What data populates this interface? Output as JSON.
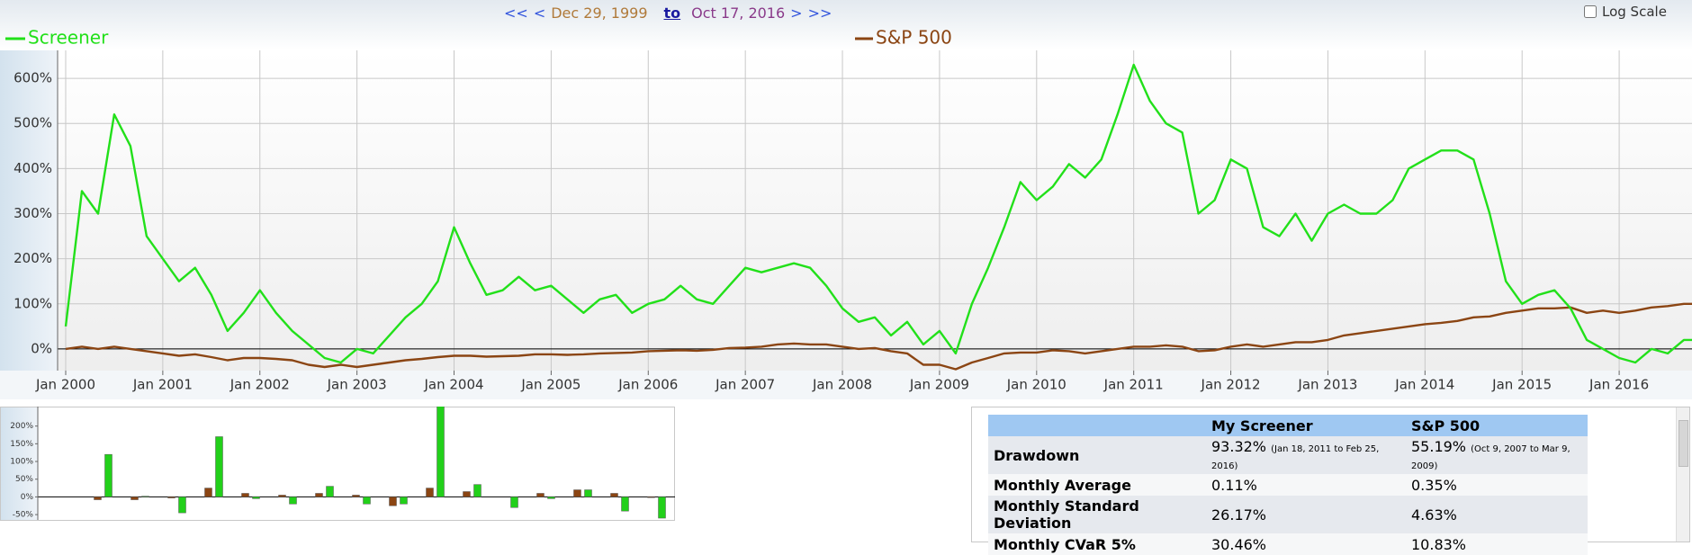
{
  "nav": {
    "first": "<<",
    "prev": "<",
    "start": "Dec 29, 1999",
    "to": "to",
    "end": "Oct 17, 2016",
    "next": ">",
    "last": ">>"
  },
  "log_scale": {
    "label": "Log Scale",
    "checked": false
  },
  "chart_data": [
    {
      "type": "line",
      "x": [
        "2000-01",
        "2000-03",
        "2000-05",
        "2000-07",
        "2000-09",
        "2000-11",
        "2001-01",
        "2001-03",
        "2001-05",
        "2001-07",
        "2001-09",
        "2001-11",
        "2002-01",
        "2002-03",
        "2002-05",
        "2002-07",
        "2002-09",
        "2002-11",
        "2003-01",
        "2003-03",
        "2003-05",
        "2003-07",
        "2003-09",
        "2003-11",
        "2004-01",
        "2004-03",
        "2004-05",
        "2004-07",
        "2004-09",
        "2004-11",
        "2005-01",
        "2005-03",
        "2005-05",
        "2005-07",
        "2005-09",
        "2005-11",
        "2006-01",
        "2006-03",
        "2006-05",
        "2006-07",
        "2006-09",
        "2006-11",
        "2007-01",
        "2007-03",
        "2007-05",
        "2007-07",
        "2007-09",
        "2007-11",
        "2008-01",
        "2008-03",
        "2008-05",
        "2008-07",
        "2008-09",
        "2008-11",
        "2009-01",
        "2009-03",
        "2009-05",
        "2009-07",
        "2009-09",
        "2009-11",
        "2010-01",
        "2010-03",
        "2010-05",
        "2010-07",
        "2010-09",
        "2010-11",
        "2011-01",
        "2011-03",
        "2011-05",
        "2011-07",
        "2011-09",
        "2011-11",
        "2012-01",
        "2012-03",
        "2012-05",
        "2012-07",
        "2012-09",
        "2012-11",
        "2013-01",
        "2013-03",
        "2013-05",
        "2013-07",
        "2013-09",
        "2013-11",
        "2014-01",
        "2014-03",
        "2014-05",
        "2014-07",
        "2014-09",
        "2014-11",
        "2015-01",
        "2015-03",
        "2015-05",
        "2015-07",
        "2015-09",
        "2015-11",
        "2016-01",
        "2016-03",
        "2016-05",
        "2016-07",
        "2016-09",
        "2016-10"
      ],
      "series": [
        {
          "name": "Screener",
          "color": "#22e01a",
          "values": [
            50,
            350,
            300,
            520,
            450,
            250,
            200,
            150,
            180,
            120,
            40,
            80,
            130,
            80,
            40,
            10,
            -20,
            -30,
            0,
            -10,
            30,
            70,
            100,
            150,
            270,
            190,
            120,
            130,
            160,
            130,
            140,
            110,
            80,
            110,
            120,
            80,
            100,
            110,
            140,
            110,
            100,
            140,
            180,
            170,
            180,
            190,
            180,
            140,
            90,
            60,
            70,
            30,
            60,
            10,
            40,
            -10,
            100,
            180,
            270,
            370,
            330,
            360,
            410,
            380,
            420,
            520,
            630,
            550,
            500,
            480,
            300,
            330,
            420,
            400,
            270,
            250,
            300,
            240,
            300,
            320,
            300,
            300,
            330,
            400,
            420,
            440,
            440,
            420,
            300,
            150,
            100,
            120,
            130,
            90,
            20,
            0,
            -20,
            -30,
            0,
            -10,
            20,
            20
          ]
        },
        {
          "name": "S&P 500",
          "color": "#8b4513",
          "values": [
            0,
            5,
            0,
            5,
            0,
            -5,
            -10,
            -15,
            -12,
            -18,
            -25,
            -20,
            -20,
            -22,
            -25,
            -35,
            -40,
            -35,
            -40,
            -35,
            -30,
            -25,
            -22,
            -18,
            -15,
            -15,
            -17,
            -16,
            -15,
            -12,
            -12,
            -13,
            -12,
            -10,
            -9,
            -8,
            -5,
            -4,
            -3,
            -4,
            -2,
            2,
            3,
            5,
            10,
            12,
            10,
            10,
            5,
            0,
            2,
            -5,
            -10,
            -35,
            -35,
            -45,
            -30,
            -20,
            -10,
            -8,
            -8,
            -3,
            -5,
            -10,
            -5,
            0,
            5,
            5,
            8,
            5,
            -5,
            -3,
            5,
            10,
            5,
            10,
            15,
            15,
            20,
            30,
            35,
            40,
            45,
            50,
            55,
            58,
            62,
            70,
            72,
            80,
            85,
            90,
            90,
            92,
            80,
            85,
            80,
            85,
            92,
            95,
            100,
            100
          ]
        }
      ],
      "xlim": [
        "1999-12",
        "2016-10"
      ],
      "xticks": [
        {
          "value": "2000-01",
          "label": "Jan 2000"
        },
        {
          "value": "2001-01",
          "label": "Jan 2001"
        },
        {
          "value": "2002-01",
          "label": "Jan 2002"
        },
        {
          "value": "2003-01",
          "label": "Jan 2003"
        },
        {
          "value": "2004-01",
          "label": "Jan 2004"
        },
        {
          "value": "2005-01",
          "label": "Jan 2005"
        },
        {
          "value": "2006-01",
          "label": "Jan 2006"
        },
        {
          "value": "2007-01",
          "label": "Jan 2007"
        },
        {
          "value": "2008-01",
          "label": "Jan 2008"
        },
        {
          "value": "2009-01",
          "label": "Jan 2009"
        },
        {
          "value": "2010-01",
          "label": "Jan 2010"
        },
        {
          "value": "2011-01",
          "label": "Jan 2011"
        },
        {
          "value": "2012-01",
          "label": "Jan 2012"
        },
        {
          "value": "2013-01",
          "label": "Jan 2013"
        },
        {
          "value": "2014-01",
          "label": "Jan 2014"
        },
        {
          "value": "2015-01",
          "label": "Jan 2015"
        },
        {
          "value": "2016-01",
          "label": "Jan 2016"
        }
      ],
      "ylim": [
        -48,
        662
      ],
      "yticks": [
        {
          "value": 0,
          "label": "0%"
        },
        {
          "value": 100,
          "label": "100%"
        },
        {
          "value": 200,
          "label": "200%"
        },
        {
          "value": 300,
          "label": "300%"
        },
        {
          "value": 400,
          "label": "400%"
        },
        {
          "value": 500,
          "label": "500%"
        },
        {
          "value": 600,
          "label": "600%"
        }
      ],
      "grid": true
    },
    {
      "type": "bar",
      "categories": [
        null,
        null,
        null,
        null,
        null,
        null,
        null,
        null,
        null,
        null,
        null,
        null,
        null,
        null,
        null,
        null
      ],
      "series": [
        {
          "color": "#8b4513",
          "values": [
            -8,
            -8,
            -3,
            25,
            10,
            5,
            10,
            5,
            -25,
            25,
            15,
            0,
            10,
            20,
            10,
            -2
          ]
        },
        {
          "color": "#22d01a",
          "values": [
            120,
            2,
            -45,
            170,
            -5,
            -20,
            30,
            -20,
            -20,
            260,
            35,
            -30,
            -5,
            20,
            -40,
            -60
          ]
        }
      ],
      "ylim": [
        -65,
        255
      ],
      "yticks": [
        {
          "value": -50,
          "label": "-50%"
        },
        {
          "value": 0,
          "label": "0%"
        },
        {
          "value": 50,
          "label": "50%"
        },
        {
          "value": 100,
          "label": "100%"
        },
        {
          "value": 150,
          "label": "150%"
        },
        {
          "value": 200,
          "label": "200%"
        }
      ]
    }
  ],
  "table": {
    "header": [
      "My Screener",
      "S&P 500"
    ],
    "rows": [
      {
        "label": "Drawdown",
        "cells": [
          {
            "value": "93.32%",
            "note": "(Jan 18, 2011 to Feb 25, 2016)"
          },
          {
            "value": "55.19%",
            "note": "(Oct 9, 2007 to Mar 9, 2009)"
          }
        ]
      },
      {
        "label": "Monthly Average",
        "cells": [
          {
            "value": "0.11%"
          },
          {
            "value": "0.35%"
          }
        ]
      },
      {
        "label": "Monthly Standard Deviation",
        "cells": [
          {
            "value": "26.17%"
          },
          {
            "value": "4.63%"
          }
        ]
      },
      {
        "label": "Monthly CVaR 5%",
        "cells": [
          {
            "value": "30.46%"
          },
          {
            "value": "10.83%"
          }
        ]
      }
    ]
  }
}
